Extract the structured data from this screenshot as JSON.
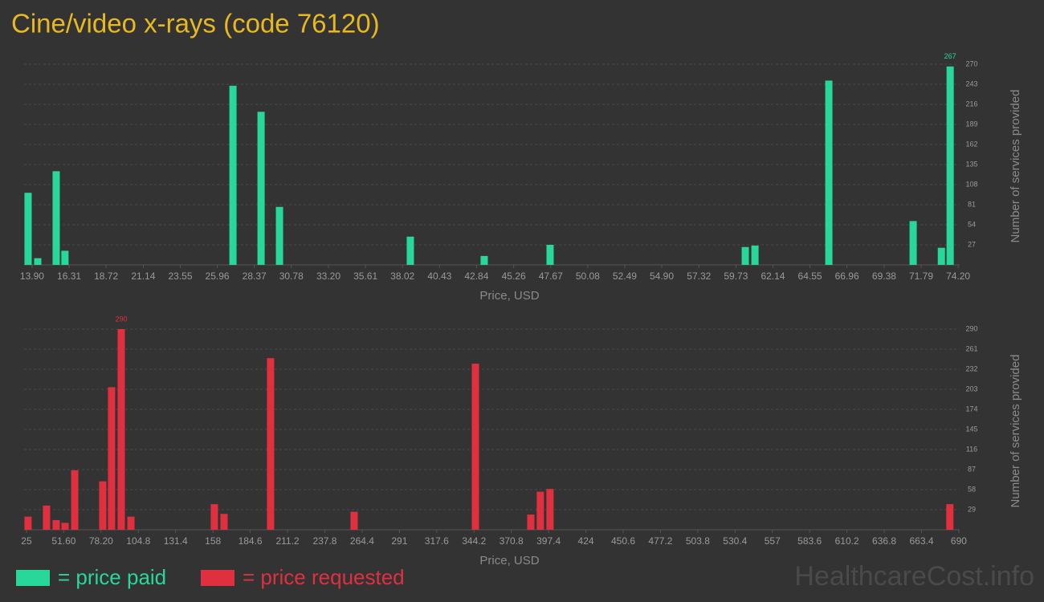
{
  "chart_data": [
    {
      "type": "bar",
      "title": "Cine/video x-rays (code 76120)",
      "x_label": "Price, USD",
      "y_label": "Number of services provided",
      "x": [
        13.64,
        14.27,
        15.47,
        16.04,
        26.98,
        28.81,
        30.01,
        38.53,
        43.34,
        47.63,
        60.34,
        60.97,
        65.78,
        71.27,
        73.11,
        73.68
      ],
      "series": [
        {
          "name": "= price paid",
          "color": "#27d89a",
          "values": [
            97,
            9,
            126,
            19,
            241,
            206,
            78,
            38,
            12,
            27,
            24,
            26,
            248,
            59,
            23,
            267
          ]
        }
      ],
      "xlim": [
        13.38,
        74.3
      ],
      "xticks": [
        {
          "value": 13.9,
          "label": "13.90"
        },
        16.31,
        18.72,
        21.14,
        23.55,
        25.96,
        28.37,
        30.78,
        {
          "value": 33.2,
          "label": "33.20"
        },
        35.61,
        38.02,
        40.43,
        42.84,
        45.26,
        47.67,
        50.08,
        52.49,
        {
          "value": 54.9,
          "label": "54.90"
        },
        57.32,
        59.73,
        62.14,
        64.55,
        66.96,
        69.38,
        71.79,
        {
          "value": 74.2,
          "label": "74.20"
        }
      ],
      "ylim": [
        0,
        270
      ],
      "yticks": [
        27,
        54,
        81,
        108,
        135,
        162,
        189,
        216,
        243,
        270
      ],
      "grid": true,
      "show_max_label": true
    },
    {
      "type": "bar",
      "x_label": "Price, USD",
      "y_label": "Number of services provided",
      "x": [
        26.1,
        39.3,
        46.2,
        52.5,
        59.4,
        79.4,
        85.7,
        92.6,
        99.5,
        159.0,
        165.9,
        199.1,
        258.7,
        345.2,
        384.7,
        391.5,
        398.4,
        683.6
      ],
      "series": [
        {
          "name": "= price requested",
          "color": "#e0303f",
          "values": [
            19,
            35,
            14,
            10,
            86,
            70,
            206,
            290,
            19,
            37,
            23,
            248,
            26,
            240,
            22,
            55,
            59,
            37
          ]
        }
      ],
      "xlim": [
        23.3,
        690.6
      ],
      "xticks": [
        25,
        {
          "value": 51.6,
          "label": "51.60"
        },
        {
          "value": 78.2,
          "label": "78.20"
        },
        104.8,
        131.4,
        158,
        184.6,
        211.2,
        237.8,
        264.4,
        291,
        317.6,
        344.2,
        370.8,
        397.4,
        424,
        450.6,
        477.2,
        503.8,
        530.4,
        557,
        583.6,
        610.2,
        636.8,
        663.4,
        690
      ],
      "ylim": [
        0,
        290
      ],
      "yticks": [
        29,
        58,
        87,
        116,
        145,
        174,
        203,
        232,
        261,
        290
      ],
      "grid": true,
      "show_max_label": true
    }
  ],
  "watermark": "HealthcareCost.info"
}
